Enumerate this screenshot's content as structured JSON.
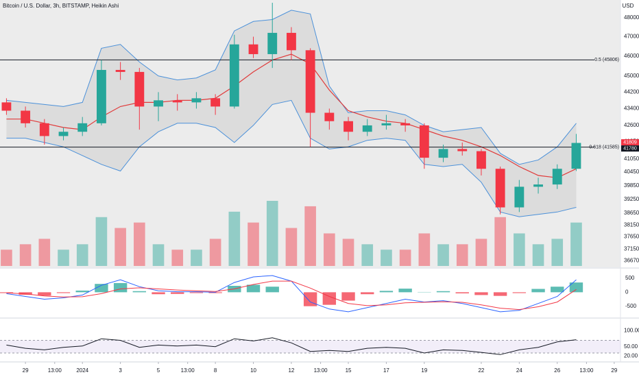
{
  "chart_data": [
    {
      "type": "candlestick",
      "title": "Bitcoin / U.S. Dollar, 3h, BITSTAMP, Heikin Ashi",
      "currency": "USD",
      "x": [
        -1,
        0,
        1,
        2,
        3,
        4,
        5,
        6,
        7,
        8,
        9,
        10,
        11,
        12,
        13,
        14,
        15,
        16,
        17,
        18,
        19,
        20,
        21,
        22,
        23,
        24,
        25,
        26,
        27,
        28,
        29
      ],
      "xlim": [
        -1.34,
        31.33
      ],
      "open": [
        43700,
        43300,
        42700,
        42100,
        42300,
        42700,
        45300,
        45200,
        43500,
        43800,
        43700,
        43900,
        43500,
        46600,
        46100,
        47200,
        46300,
        43200,
        42800,
        42300,
        42600,
        42700,
        42600,
        41100,
        41500,
        41400,
        40600,
        38900,
        39800,
        39900,
        40600
      ],
      "high": [
        43900,
        43500,
        42900,
        42500,
        43000,
        45800,
        45700,
        45400,
        44200,
        44100,
        44200,
        44100,
        47100,
        47000,
        48800,
        47500,
        46400,
        43400,
        43000,
        42900,
        43100,
        42900,
        42700,
        41700,
        41800,
        41500,
        40700,
        40100,
        40200,
        40800,
        42200
      ],
      "low": [
        43100,
        42500,
        41700,
        41900,
        42100,
        42600,
        44800,
        42400,
        42800,
        43300,
        43400,
        43100,
        43400,
        45900,
        45400,
        45800,
        41600,
        42400,
        41900,
        42100,
        42400,
        42300,
        40600,
        40900,
        41200,
        40300,
        38600,
        38700,
        39500,
        39700,
        40500
      ],
      "close": [
        43300,
        42700,
        42100,
        42300,
        42700,
        45300,
        45200,
        43500,
        43800,
        43700,
        43900,
        43500,
        46600,
        46100,
        47200,
        46300,
        43200,
        42800,
        42300,
        42600,
        42700,
        42600,
        41100,
        41500,
        41400,
        40600,
        38900,
        39800,
        39900,
        40600,
        41780
      ],
      "up_color": "#26a69a",
      "down_color": "#f23645",
      "log": true,
      "ylim": [
        36400,
        48950
      ],
      "yticks": [
        48000,
        47000,
        46000,
        45000,
        44200,
        43400,
        42600,
        41850,
        41050,
        40450,
        39850,
        39250,
        38650,
        38150,
        37650,
        37150,
        36670
      ],
      "bollinger": {
        "upper": [
          43800,
          43700,
          43600,
          43500,
          43700,
          46400,
          46600,
          45700,
          45000,
          44800,
          44900,
          45300,
          47300,
          47800,
          47900,
          48400,
          48200,
          44500,
          43200,
          43300,
          43300,
          43100,
          42600,
          42300,
          42400,
          42500,
          41300,
          40800,
          41000,
          41600,
          42700
        ],
        "basis": [
          42900,
          42900,
          42700,
          42500,
          42400,
          43000,
          43500,
          43700,
          43700,
          43800,
          43800,
          43900,
          44500,
          45200,
          45800,
          46100,
          45600,
          44300,
          43300,
          43000,
          42800,
          42700,
          42400,
          42100,
          41900,
          41600,
          41200,
          40700,
          40300,
          40200,
          40600
        ],
        "lower": [
          42000,
          42000,
          41800,
          41600,
          41200,
          40800,
          40500,
          41600,
          42300,
          42700,
          42700,
          42500,
          41800,
          42600,
          43600,
          43800,
          42000,
          41500,
          41600,
          41900,
          42000,
          41900,
          40800,
          40700,
          40800,
          40000,
          38700,
          38500,
          38600,
          38700,
          38900
        ],
        "band_color": "#4a90d9",
        "basis_color": "#e03a3a"
      },
      "volume": [
        3,
        4,
        5,
        3,
        4,
        9,
        7,
        8,
        4,
        3,
        3,
        5,
        10,
        8,
        12,
        7,
        11,
        6,
        5,
        4,
        3,
        3,
        6,
        4,
        4,
        5,
        9,
        6,
        4,
        5,
        8
      ],
      "levels": [
        {
          "label": "0.5 (45806)",
          "value": 45806
        },
        {
          "label": "0.618 (41585)",
          "value": 41585
        }
      ],
      "price_labels": [
        {
          "value": 41809,
          "color": "#f23645"
        },
        {
          "value": 41780,
          "color": "#131722"
        }
      ]
    },
    {
      "type": "macd",
      "macd": [
        -50,
        -150,
        -250,
        -200,
        -100,
        250,
        450,
        200,
        50,
        20,
        20,
        0,
        350,
        550,
        600,
        400,
        -350,
        -600,
        -700,
        -550,
        -400,
        -250,
        -350,
        -300,
        -400,
        -550,
        -700,
        -650,
        -400,
        -150,
        450
      ],
      "signal": [
        -20,
        -60,
        -130,
        -170,
        -160,
        -50,
        120,
        160,
        120,
        80,
        50,
        30,
        120,
        280,
        400,
        400,
        150,
        -150,
        -400,
        -480,
        -450,
        -380,
        -360,
        -340,
        -360,
        -450,
        -570,
        -620,
        -520,
        -350,
        100
      ],
      "histogram": [
        -30,
        -90,
        -120,
        -30,
        60,
        300,
        330,
        40,
        -70,
        -60,
        -30,
        -30,
        230,
        270,
        200,
        0,
        -500,
        -450,
        -300,
        -70,
        50,
        130,
        10,
        40,
        -40,
        -100,
        -130,
        -30,
        120,
        200,
        350
      ],
      "macd_color": "#2962ff",
      "signal_color": "#f23645",
      "ylim": [
        -900,
        820
      ],
      "yticks": [
        500,
        0,
        -500
      ]
    },
    {
      "type": "line",
      "values": [
        55,
        45,
        40,
        48,
        52,
        75,
        70,
        48,
        55,
        52,
        55,
        50,
        75,
        68,
        78,
        62,
        35,
        38,
        35,
        45,
        48,
        45,
        30,
        40,
        38,
        32,
        25,
        40,
        48,
        65,
        72
      ],
      "color": "#131722",
      "band": [
        30,
        70
      ],
      "ylim": [
        4,
        136
      ],
      "yticks": [
        {
          "value": 100,
          "label": "100.00"
        },
        {
          "value": 50,
          "label": "50.00"
        },
        {
          "value": 20,
          "label": "20.00"
        }
      ],
      "xticks": [
        {
          "value": 0,
          "label": "29"
        },
        {
          "value": 1.54,
          "label": "13:00"
        },
        {
          "value": 3,
          "label": "2024"
        },
        {
          "value": 5,
          "label": "3"
        },
        {
          "value": 7,
          "label": "5"
        },
        {
          "value": 8.54,
          "label": "13:00"
        },
        {
          "value": 10,
          "label": "8"
        },
        {
          "value": 12,
          "label": "10"
        },
        {
          "value": 14,
          "label": "12"
        },
        {
          "value": 15.54,
          "label": "13:00"
        },
        {
          "value": 17,
          "label": "15"
        },
        {
          "value": 19,
          "label": "17"
        },
        {
          "value": 21,
          "label": "19"
        },
        {
          "value": 24,
          "label": "22"
        },
        {
          "value": 26,
          "label": "24"
        },
        {
          "value": 28,
          "label": "26"
        },
        {
          "value": 29.54,
          "label": "13:00"
        },
        {
          "value": 31,
          "label": "29"
        }
      ]
    }
  ]
}
